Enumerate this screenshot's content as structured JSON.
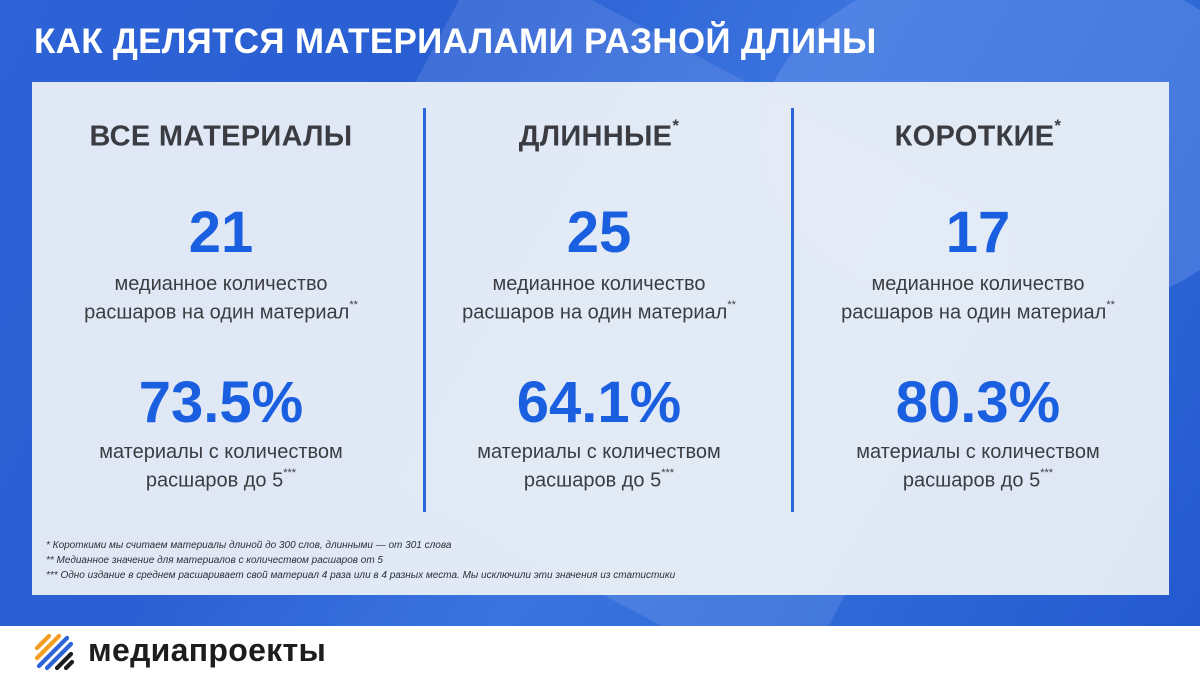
{
  "headline": "КАК ДЕЛЯТСЯ МАТЕРИАЛАМИ РАЗНОЙ ДЛИНЫ",
  "columns": [
    {
      "title": "ВСЕ МАТЕРИАЛЫ",
      "title_mark": "",
      "median_value": "21",
      "median_line1": "медианное количество",
      "median_line2": "расшаров на один материал",
      "median_mark": "**",
      "share_value": "73.5%",
      "share_line1": "материалы с количеством",
      "share_line2": "расшаров до 5",
      "share_mark": "***"
    },
    {
      "title": "ДЛИННЫЕ",
      "title_mark": "*",
      "median_value": "25",
      "median_line1": "медианное количество",
      "median_line2": "расшаров на один материал",
      "median_mark": "**",
      "share_value": "64.1%",
      "share_line1": "материалы с количеством",
      "share_line2": "расшаров до 5",
      "share_mark": "***"
    },
    {
      "title": "КОРОТКИЕ",
      "title_mark": "*",
      "median_value": "17",
      "median_line1": "медианное количество",
      "median_line2": "расшаров на один материал",
      "median_mark": "**",
      "share_value": "80.3%",
      "share_line1": "материалы с количеством",
      "share_line2": "расшаров до 5",
      "share_mark": "***"
    }
  ],
  "footnotes": [
    "* Короткими мы считаем материалы длиной до 300 слов, длинными — от 301 слова",
    "** Медианное значение для материалов с количеством расшаров от 5",
    "*** Одно издание в среднем расшаривает свой материал 4 раза или в 4 разных места. Мы исключили эти значения из статистики"
  ],
  "logo": {
    "text": "медиапроекты",
    "icon": "mediaprojects-logo-icon",
    "colors": [
      "#f39c1f",
      "#2b63d9",
      "#1d1d1f"
    ]
  },
  "colors": {
    "accent": "#1a5fe0",
    "background": "#2d63d6",
    "divider": "#2c66dc"
  }
}
